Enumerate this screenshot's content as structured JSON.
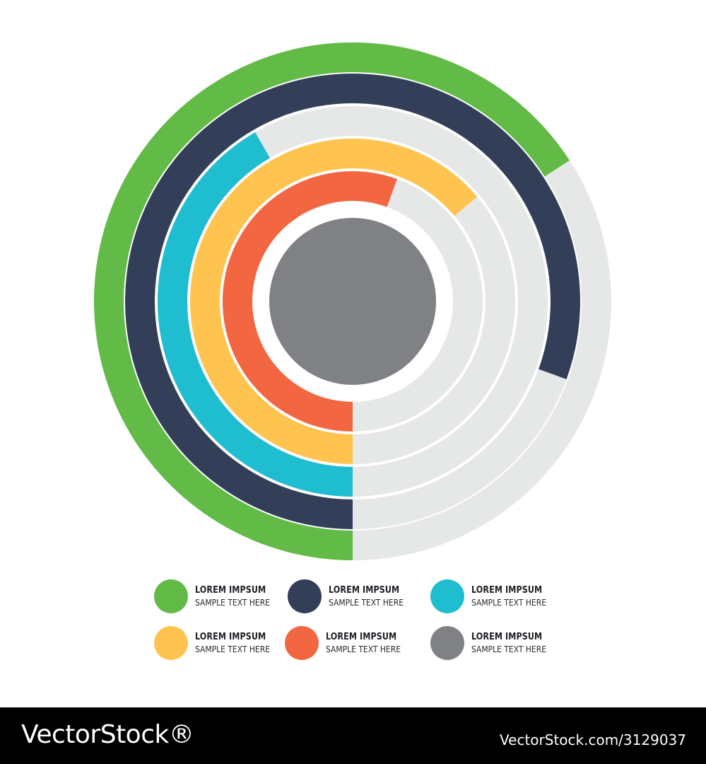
{
  "chart_data": {
    "type": "radial-bar",
    "track_color": "#e6e7e7",
    "center_color": "#808184",
    "series": [
      {
        "color": "#62bb47",
        "value_degrees": 237
      },
      {
        "color": "#333e59",
        "value_degrees": 290
      },
      {
        "color": "#1fbdd0",
        "value_degrees": 150
      },
      {
        "color": "#fec44f",
        "value_degrees": 230
      },
      {
        "color": "#f26641",
        "value_degrees": 200
      }
    ],
    "legend": [
      {
        "color": "#62bb47",
        "title": "LOREM IMPSUM",
        "subtitle": "SAMPLE TEXT HERE"
      },
      {
        "color": "#333e59",
        "title": "LOREM IMPSUM",
        "subtitle": "SAMPLE TEXT HERE"
      },
      {
        "color": "#1fbdd0",
        "title": "LOREM IMPSUM",
        "subtitle": "SAMPLE TEXT HERE"
      },
      {
        "color": "#fec44f",
        "title": "LOREM IMPSUM",
        "subtitle": "SAMPLE TEXT HERE"
      },
      {
        "color": "#f26641",
        "title": "LOREM IMPSUM",
        "subtitle": "SAMPLE TEXT HERE"
      },
      {
        "color": "#808184",
        "title": "LOREM IMPSUM",
        "subtitle": "SAMPLE TEXT HERE"
      }
    ]
  },
  "footer": {
    "brand": "VectorStock®",
    "image_id": "VectorStock.com/3129037"
  }
}
